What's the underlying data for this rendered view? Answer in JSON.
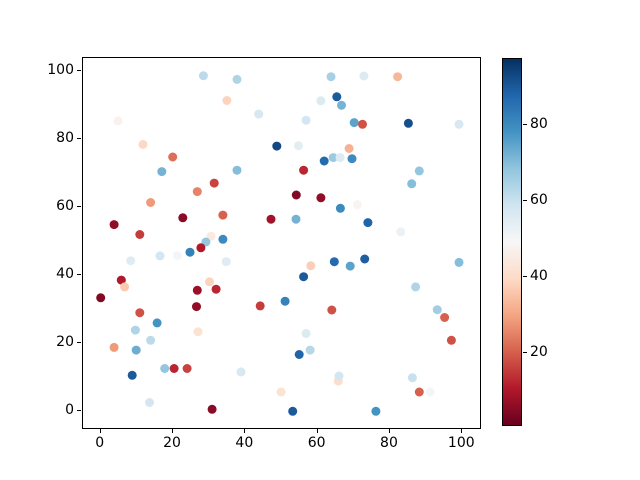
{
  "figure": {
    "background": "#ffffff",
    "text_color": "#000000"
  },
  "chart_data": {
    "type": "scatter",
    "title": "",
    "xlabel": "",
    "ylabel": "",
    "grid": false,
    "x_ticks": [
      0,
      20,
      40,
      60,
      80,
      100
    ],
    "y_ticks": [
      0,
      20,
      40,
      60,
      80,
      100
    ],
    "xlim": [
      -4.9,
      104.9
    ],
    "ylim": [
      -4.9,
      103.9
    ],
    "marker_radius_px": 4.5,
    "colormap_name": "RdBu",
    "colormap_stops": [
      [
        0.0,
        "#67001f"
      ],
      [
        0.1,
        "#b2182b"
      ],
      [
        0.2,
        "#d6604d"
      ],
      [
        0.3,
        "#f4a582"
      ],
      [
        0.4,
        "#fddbc7"
      ],
      [
        0.5,
        "#f7f7f7"
      ],
      [
        0.6,
        "#d1e5f0"
      ],
      [
        0.7,
        "#92c5de"
      ],
      [
        0.8,
        "#4393c3"
      ],
      [
        0.9,
        "#2166ac"
      ],
      [
        1.0,
        "#053061"
      ]
    ],
    "colorbar": {
      "vmin": 0.5,
      "vmax": 97.5,
      "ticks": [
        20,
        40,
        60,
        80
      ],
      "position": "right"
    },
    "points": [
      [
        28.4,
        98.7,
        62
      ],
      [
        4.8,
        85.4,
        47
      ],
      [
        11.7,
        78.5,
        39
      ],
      [
        19.9,
        74.8,
        22
      ],
      [
        16.9,
        70.5,
        72
      ],
      [
        37.7,
        97.6,
        64
      ],
      [
        34.9,
        91.4,
        38
      ],
      [
        43.7,
        87.4,
        57
      ],
      [
        56.8,
        85.6,
        58
      ],
      [
        63.7,
        98.4,
        65
      ],
      [
        65.3,
        92.5,
        90
      ],
      [
        66.6,
        90.0,
        72
      ],
      [
        60.9,
        91.3,
        56
      ],
      [
        48.7,
        78.0,
        93
      ],
      [
        54.7,
        78.1,
        54
      ],
      [
        37.7,
        70.9,
        70
      ],
      [
        56.1,
        70.9,
        12
      ],
      [
        31.4,
        67.1,
        16
      ],
      [
        61.8,
        73.6,
        87
      ],
      [
        64.3,
        74.6,
        67
      ],
      [
        66.2,
        74.6,
        56
      ],
      [
        68.7,
        77.3,
        32
      ],
      [
        69.5,
        74.3,
        80
      ],
      [
        72.8,
        98.6,
        56
      ],
      [
        82.1,
        98.4,
        33
      ],
      [
        70.1,
        84.9,
        75
      ],
      [
        72.4,
        84.4,
        18
      ],
      [
        85.1,
        84.7,
        92
      ],
      [
        99.1,
        84.4,
        57
      ],
      [
        88.1,
        70.7,
        68
      ],
      [
        86.0,
        66.9,
        70
      ],
      [
        26.7,
        64.6,
        25
      ],
      [
        13.8,
        61.4,
        28
      ],
      [
        22.7,
        56.9,
        5
      ],
      [
        3.7,
        54.9,
        6
      ],
      [
        10.8,
        52.0,
        15
      ],
      [
        30.5,
        51.5,
        44
      ],
      [
        29.1,
        49.8,
        68
      ],
      [
        27.7,
        48.1,
        10
      ],
      [
        24.7,
        46.8,
        82
      ],
      [
        21.2,
        45.8,
        50
      ],
      [
        16.4,
        45.7,
        58
      ],
      [
        8.3,
        44.3,
        55
      ],
      [
        5.7,
        38.6,
        10
      ],
      [
        6.6,
        36.6,
        36
      ],
      [
        0.0,
        33.4,
        4
      ],
      [
        26.7,
        35.6,
        7
      ],
      [
        30.1,
        38.1,
        38
      ],
      [
        54.1,
        63.6,
        4
      ],
      [
        60.9,
        62.8,
        6
      ],
      [
        33.8,
        57.7,
        20
      ],
      [
        47.1,
        56.5,
        8
      ],
      [
        54.0,
        56.5,
        72
      ],
      [
        66.3,
        59.7,
        80
      ],
      [
        33.8,
        50.6,
        80
      ],
      [
        34.7,
        44.0,
        55
      ],
      [
        58.1,
        42.8,
        37
      ],
      [
        56.1,
        39.6,
        90
      ],
      [
        64.6,
        44.0,
        87
      ],
      [
        31.9,
        35.9,
        12
      ],
      [
        44.1,
        31.0,
        15
      ],
      [
        51.0,
        32.4,
        82
      ],
      [
        71.0,
        60.8,
        48
      ],
      [
        73.9,
        55.5,
        88
      ],
      [
        83.0,
        52.8,
        52
      ],
      [
        73.0,
        44.8,
        89
      ],
      [
        69.0,
        42.7,
        75
      ],
      [
        99.1,
        43.8,
        70
      ],
      [
        87.1,
        36.6,
        64
      ],
      [
        10.8,
        29.0,
        18
      ],
      [
        26.5,
        30.8,
        6
      ],
      [
        15.6,
        26.0,
        78
      ],
      [
        9.6,
        23.9,
        64
      ],
      [
        13.8,
        20.9,
        62
      ],
      [
        3.7,
        18.8,
        28
      ],
      [
        9.8,
        18.0,
        73
      ],
      [
        26.9,
        23.4,
        42
      ],
      [
        17.7,
        12.6,
        68
      ],
      [
        20.3,
        12.6,
        12
      ],
      [
        23.9,
        12.6,
        16
      ],
      [
        8.7,
        10.6,
        90
      ],
      [
        13.5,
        2.6,
        58
      ],
      [
        63.9,
        29.8,
        18
      ],
      [
        56.8,
        22.9,
        56
      ],
      [
        54.9,
        16.7,
        88
      ],
      [
        57.9,
        18.0,
        63
      ],
      [
        38.8,
        11.6,
        57
      ],
      [
        49.9,
        5.7,
        42
      ],
      [
        30.8,
        0.6,
        5
      ],
      [
        53.1,
        0.0,
        90
      ],
      [
        65.7,
        8.9,
        40
      ],
      [
        65.9,
        10.4,
        58
      ],
      [
        93.1,
        29.9,
        66
      ],
      [
        95.1,
        27.6,
        20
      ],
      [
        97.0,
        20.9,
        18
      ],
      [
        86.2,
        9.9,
        60
      ],
      [
        88.1,
        5.7,
        20
      ],
      [
        91.1,
        5.7,
        50
      ],
      [
        76.1,
        0.0,
        78
      ]
    ]
  }
}
